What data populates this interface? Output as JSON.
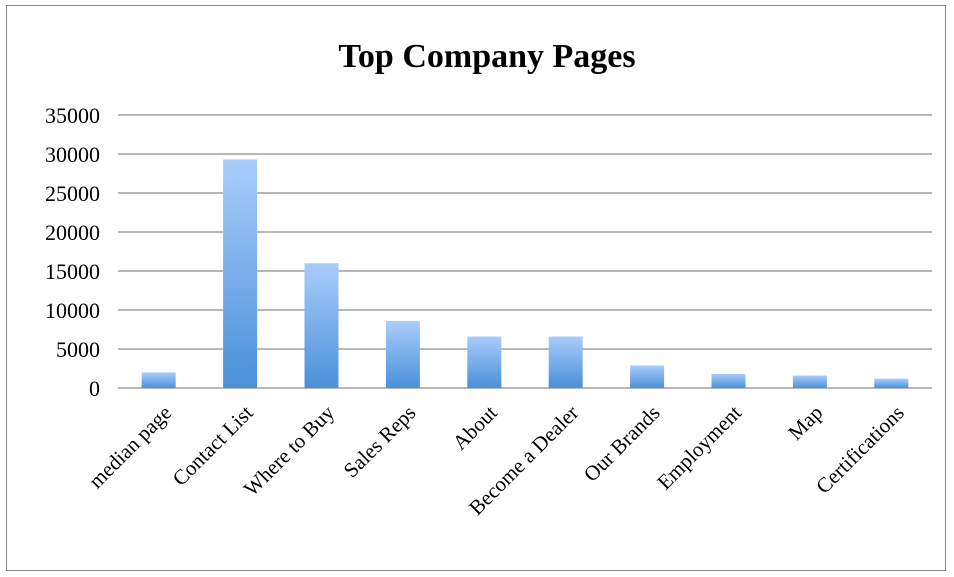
{
  "chart_data": {
    "type": "bar",
    "title": "Top Company Pages",
    "xlabel": "",
    "ylabel": "",
    "categories": [
      "median page",
      "Contact List",
      "Where to Buy",
      "Sales Reps",
      "About",
      "Become a Dealer",
      "Our Brands",
      "Employment",
      "Map",
      "Certifications"
    ],
    "values": [
      2000,
      29300,
      16000,
      8600,
      6600,
      6600,
      2900,
      1800,
      1600,
      1200
    ],
    "ylim": [
      0,
      35000
    ],
    "yticks": [
      "0",
      "5000",
      "10000",
      "15000",
      "20000",
      "25000",
      "30000",
      "35000"
    ],
    "grid": true,
    "legend": "none",
    "colors": {
      "bar_top": "#a9cdfb",
      "bar_bottom": "#4a90d9",
      "grid": "#8c8c8c"
    }
  }
}
